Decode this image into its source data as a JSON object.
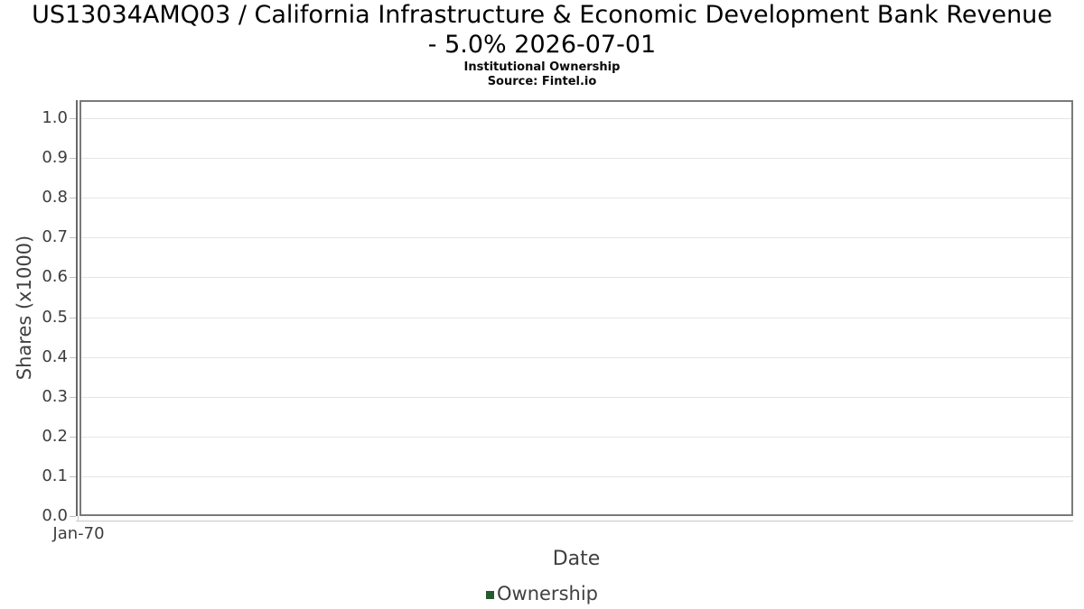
{
  "chart": {
    "title_line1": "US13034AMQ03 / California Infrastructure & Economic Development Bank Revenue",
    "title_line2": "- 5.0% 2026-07-01",
    "subtitle": "Institutional Ownership",
    "source": "Source: Fintel.io"
  },
  "chart_data": {
    "type": "area",
    "title": "US13034AMQ03 / California Infrastructure & Economic Development Bank Revenue - 5.0% 2026-07-01",
    "subtitle": "Institutional Ownership",
    "source": "Source: Fintel.io",
    "xlabel": "Date",
    "ylabel": "Shares (x1000)",
    "x_ticks": [
      "Jan-70"
    ],
    "y_ticks": [
      "0.0",
      "0.1",
      "0.2",
      "0.3",
      "0.4",
      "0.5",
      "0.6",
      "0.7",
      "0.8",
      "0.9",
      "1.0"
    ],
    "ylim": [
      0.0,
      1.045
    ],
    "grid": true,
    "legend": {
      "position": "bottom",
      "entries": [
        {
          "label": "Ownership",
          "color": "#275a2e"
        }
      ]
    },
    "series": [
      {
        "name": "Ownership",
        "color": "#275a2e",
        "x": [],
        "y": []
      }
    ]
  }
}
